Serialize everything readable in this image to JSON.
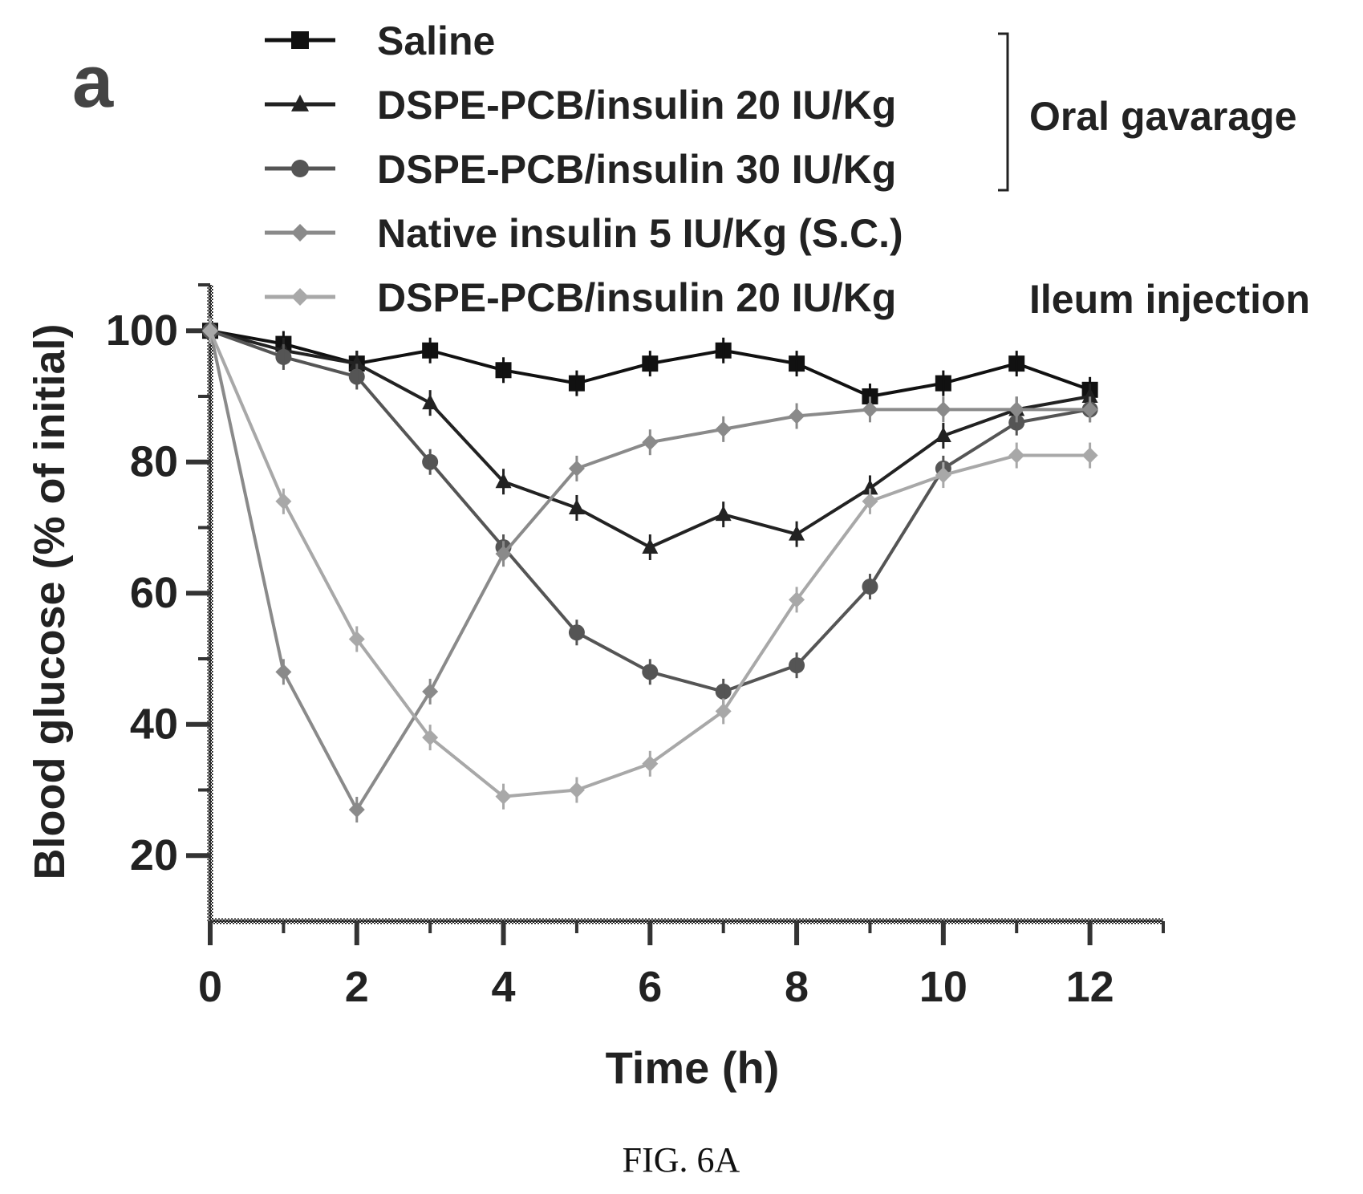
{
  "panel_label": "a",
  "figure_caption": "FIG. 6A",
  "chart_data": {
    "type": "line",
    "xlabel": "Time (h)",
    "ylabel": "Blood glucose (% of initial)",
    "xlim": [
      0,
      13
    ],
    "ylim": [
      10,
      107
    ],
    "xticks": [
      0,
      2,
      4,
      6,
      8,
      10,
      12
    ],
    "yticks": [
      20,
      40,
      60,
      80,
      100
    ],
    "grid": false,
    "legend_position": "top",
    "legend_groups": [
      {
        "label": "Oral gavarage",
        "series_indices": [
          0,
          1,
          2
        ]
      },
      {
        "label": "Ileum injection",
        "series_indices": [
          4
        ]
      }
    ],
    "series": [
      {
        "name": "Saline",
        "color": "#111111",
        "marker": "square",
        "x": [
          0,
          1,
          2,
          3,
          4,
          5,
          6,
          7,
          8,
          9,
          10,
          11,
          12
        ],
        "y": [
          100,
          98,
          95,
          97,
          94,
          92,
          95,
          97,
          95,
          90,
          92,
          95,
          91
        ]
      },
      {
        "name": "DSPE-PCB/insulin 20 IU/Kg",
        "color": "#222222",
        "marker": "triangle",
        "x": [
          0,
          1,
          2,
          3,
          4,
          5,
          6,
          7,
          8,
          9,
          10,
          11,
          12
        ],
        "y": [
          100,
          97,
          95,
          89,
          77,
          73,
          67,
          72,
          69,
          76,
          84,
          88,
          90
        ]
      },
      {
        "name": "DSPE-PCB/insulin 30 IU/Kg",
        "color": "#555555",
        "marker": "circle",
        "x": [
          0,
          1,
          2,
          3,
          4,
          5,
          6,
          7,
          8,
          9,
          10,
          11,
          12
        ],
        "y": [
          100,
          96,
          93,
          80,
          67,
          54,
          48,
          45,
          49,
          61,
          79,
          86,
          88
        ]
      },
      {
        "name": "Native insulin 5 IU/Kg (S.C.)",
        "color": "#8a8a8a",
        "marker": "diamond",
        "x": [
          0,
          1,
          2,
          3,
          4,
          5,
          6,
          7,
          8,
          9,
          10,
          11,
          12
        ],
        "y": [
          100,
          48,
          27,
          45,
          66,
          79,
          83,
          85,
          87,
          88,
          88,
          88,
          88
        ]
      },
      {
        "name": "DSPE-PCB/insulin 20 IU/Kg",
        "color": "#a8a8a8",
        "marker": "diamond",
        "x": [
          0,
          1,
          2,
          3,
          4,
          5,
          6,
          7,
          8,
          9,
          10,
          11,
          12
        ],
        "y": [
          100,
          74,
          53,
          38,
          29,
          30,
          34,
          42,
          59,
          74,
          78,
          81,
          81
        ]
      }
    ]
  }
}
